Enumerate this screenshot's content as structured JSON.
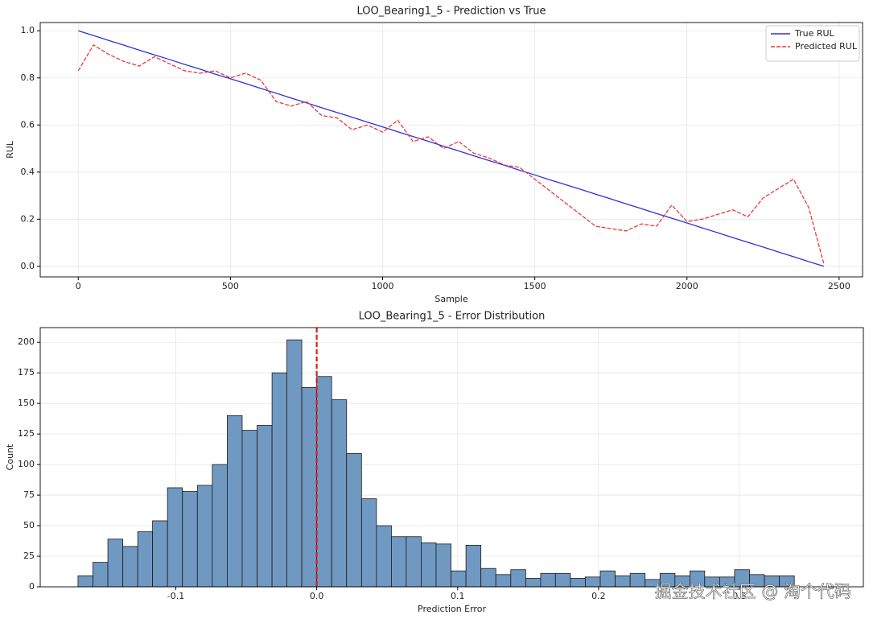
{
  "chart_data": [
    {
      "type": "line",
      "title": "LOO_Bearing1_5 - Prediction vs True",
      "xlabel": "Sample",
      "ylabel": "RUL",
      "x": [
        0,
        50,
        100,
        150,
        200,
        250,
        300,
        350,
        400,
        450,
        500,
        550,
        600,
        650,
        700,
        750,
        800,
        850,
        900,
        950,
        1000,
        1050,
        1100,
        1150,
        1200,
        1250,
        1300,
        1350,
        1400,
        1450,
        1500,
        1550,
        1600,
        1650,
        1700,
        1750,
        1800,
        1850,
        1900,
        1950,
        2000,
        2050,
        2100,
        2150,
        2200,
        2250,
        2300,
        2350,
        2400,
        2450
      ],
      "series": [
        {
          "name": "True RUL",
          "color": "#3030dd",
          "dash": false,
          "values": [
            1.0,
            0.98,
            0.959,
            0.939,
            0.918,
            0.898,
            0.878,
            0.857,
            0.837,
            0.816,
            0.796,
            0.776,
            0.755,
            0.735,
            0.714,
            0.694,
            0.673,
            0.653,
            0.633,
            0.612,
            0.592,
            0.571,
            0.551,
            0.531,
            0.51,
            0.49,
            0.469,
            0.449,
            0.429,
            0.408,
            0.388,
            0.367,
            0.347,
            0.327,
            0.306,
            0.286,
            0.265,
            0.245,
            0.224,
            0.204,
            0.184,
            0.163,
            0.143,
            0.122,
            0.102,
            0.082,
            0.061,
            0.041,
            0.02,
            0.0
          ]
        },
        {
          "name": "Predicted RUL",
          "color": "#e83a3a",
          "dash": true,
          "values": [
            0.83,
            0.94,
            0.9,
            0.87,
            0.85,
            0.89,
            0.86,
            0.83,
            0.82,
            0.83,
            0.8,
            0.82,
            0.79,
            0.7,
            0.68,
            0.7,
            0.64,
            0.63,
            0.58,
            0.6,
            0.57,
            0.62,
            0.53,
            0.55,
            0.5,
            0.53,
            0.48,
            0.46,
            0.43,
            0.42,
            0.37,
            0.32,
            0.27,
            0.22,
            0.17,
            0.16,
            0.15,
            0.18,
            0.17,
            0.26,
            0.19,
            0.2,
            0.22,
            0.24,
            0.21,
            0.29,
            0.33,
            0.37,
            0.25,
            0.01
          ]
        }
      ],
      "xlim": [
        -125,
        2577
      ],
      "xticks": [
        0,
        500,
        1000,
        1500,
        2000,
        2500
      ],
      "ylim": [
        -0.045,
        1.035
      ],
      "yticks": [
        {
          "value": 0,
          "label": "0.0"
        },
        0.2,
        0.4,
        0.6,
        0.8,
        {
          "value": 1,
          "label": "1.0"
        }
      ],
      "grid": true,
      "legend": "upper right"
    },
    {
      "type": "histogram",
      "title": "LOO_Bearing1_5 - Error Distribution",
      "xlabel": "Prediction Error",
      "ylabel": "Count",
      "bins": [
        -0.1694,
        -0.1588,
        -0.1482,
        -0.1376,
        -0.127,
        -0.1165,
        -0.1059,
        -0.0953,
        -0.0847,
        -0.0741,
        -0.0635,
        -0.0529,
        -0.0423,
        -0.0317,
        -0.0212,
        -0.0106,
        0.0,
        0.0106,
        0.0212,
        0.0318,
        0.0424,
        0.053,
        0.0635,
        0.0741,
        0.0847,
        0.0953,
        0.1059,
        0.1165,
        0.1271,
        0.1377,
        0.1483,
        0.1589,
        0.1694,
        0.18,
        0.1906,
        0.2012,
        0.2118,
        0.2224,
        0.233,
        0.2436,
        0.2542,
        0.2648,
        0.2753,
        0.2859,
        0.2965,
        0.3071,
        0.3177,
        0.3283,
        0.3389
      ],
      "values": [
        9,
        20,
        39,
        33,
        45,
        54,
        81,
        78,
        83,
        100,
        140,
        128,
        132,
        175,
        202,
        163,
        172,
        153,
        109,
        72,
        50,
        41,
        41,
        36,
        35,
        13,
        34,
        15,
        10,
        14,
        7,
        11,
        11,
        7,
        8,
        13,
        9,
        11,
        6,
        11,
        9,
        13,
        8,
        8,
        14,
        10,
        9,
        9
      ],
      "color": "#7099c2",
      "xlim": [
        -0.1962,
        0.3879
      ],
      "xticks": [
        -0.1,
        {
          "value": 0,
          "label": "0.0"
        },
        0.1,
        0.2,
        0.3
      ],
      "ylim": [
        0,
        212
      ],
      "yticks": [
        0,
        25,
        50,
        75,
        100,
        125,
        150,
        175,
        200
      ],
      "grid": true,
      "vline": {
        "value": 0,
        "color": "#e41a1c"
      }
    }
  ],
  "watermark": "掘金技术社区 @ 淘个代码"
}
